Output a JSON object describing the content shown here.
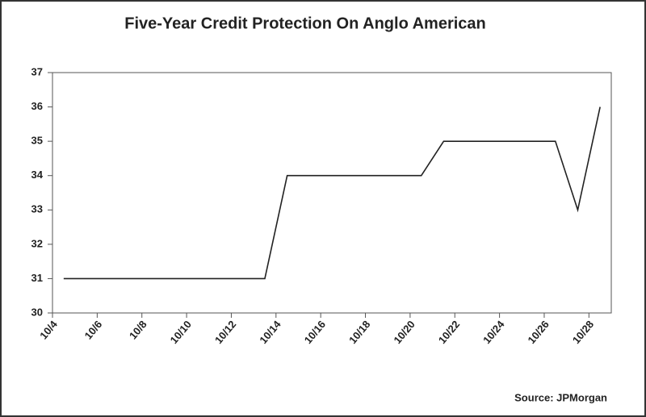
{
  "chart_data": {
    "type": "line",
    "title": "Five-Year Credit Protection On Anglo American",
    "source": "Source: JPMorgan",
    "categories": [
      "10/4",
      null,
      "10/6",
      null,
      "10/8",
      null,
      "10/10",
      null,
      "10/12",
      null,
      "10/14",
      null,
      "10/16",
      null,
      "10/18",
      null,
      "10/20",
      null,
      "10/22",
      null,
      "10/24",
      null,
      "10/26",
      null,
      "10/28"
    ],
    "values": [
      31,
      31,
      31,
      31,
      31,
      31,
      31,
      31,
      31,
      31,
      34,
      34,
      34,
      34,
      34,
      34,
      34,
      35,
      35,
      35,
      35,
      35,
      35,
      33,
      36
    ],
    "color": "#222222",
    "ylim": [
      30,
      37
    ],
    "yticks": [
      30,
      31,
      32,
      33,
      34,
      35,
      36,
      37
    ],
    "grid": false
  }
}
